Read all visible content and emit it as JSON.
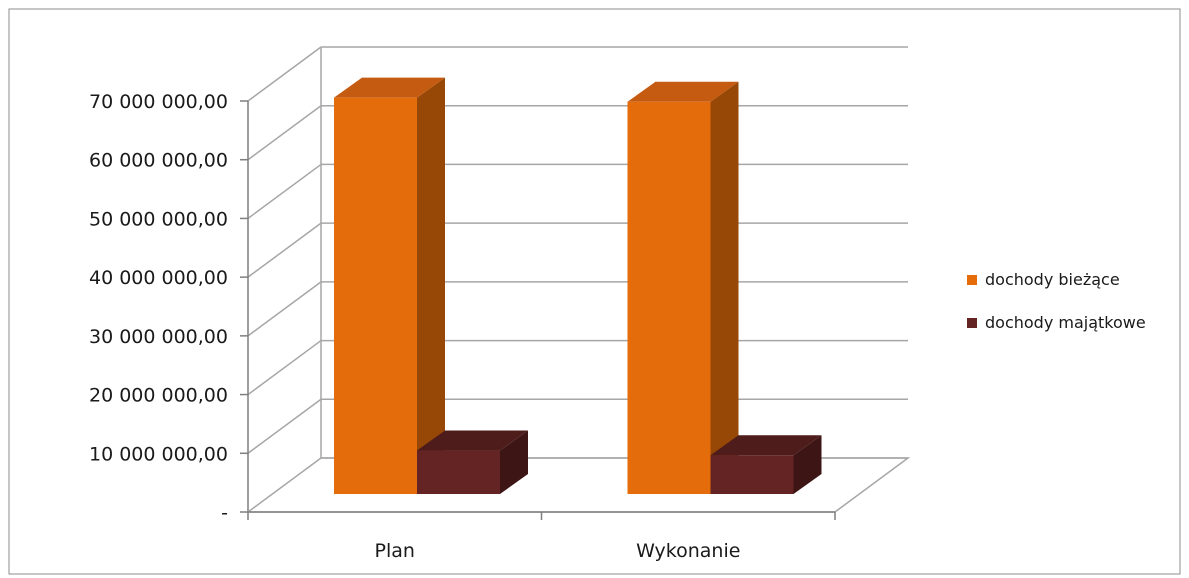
{
  "chart_data": {
    "type": "bar",
    "categories": [
      "Plan",
      "Wykonanie"
    ],
    "series": [
      {
        "name": "dochody bieżące",
        "values": [
          67500000,
          66800000
        ],
        "color": "#e46c0a",
        "side_color": "#974806",
        "top_color": "#c55a11"
      },
      {
        "name": "dochody majątkowe",
        "values": [
          7400000,
          6600000
        ],
        "color": "#632423",
        "side_color": "#3d1514",
        "top_color": "#4e1c1b"
      }
    ],
    "ylim": [
      0,
      70000000
    ],
    "yticks": [
      0,
      10000000,
      20000000,
      30000000,
      40000000,
      50000000,
      60000000,
      70000000
    ],
    "ytick_labels": [
      "-",
      "10 000 000,00",
      "20 000 000,00",
      "30 000 000,00",
      "40 000 000,00",
      "50 000 000,00",
      "60 000 000,00",
      "70 000 000,00"
    ],
    "grid": true,
    "legend_position": "right",
    "style": "3d"
  }
}
